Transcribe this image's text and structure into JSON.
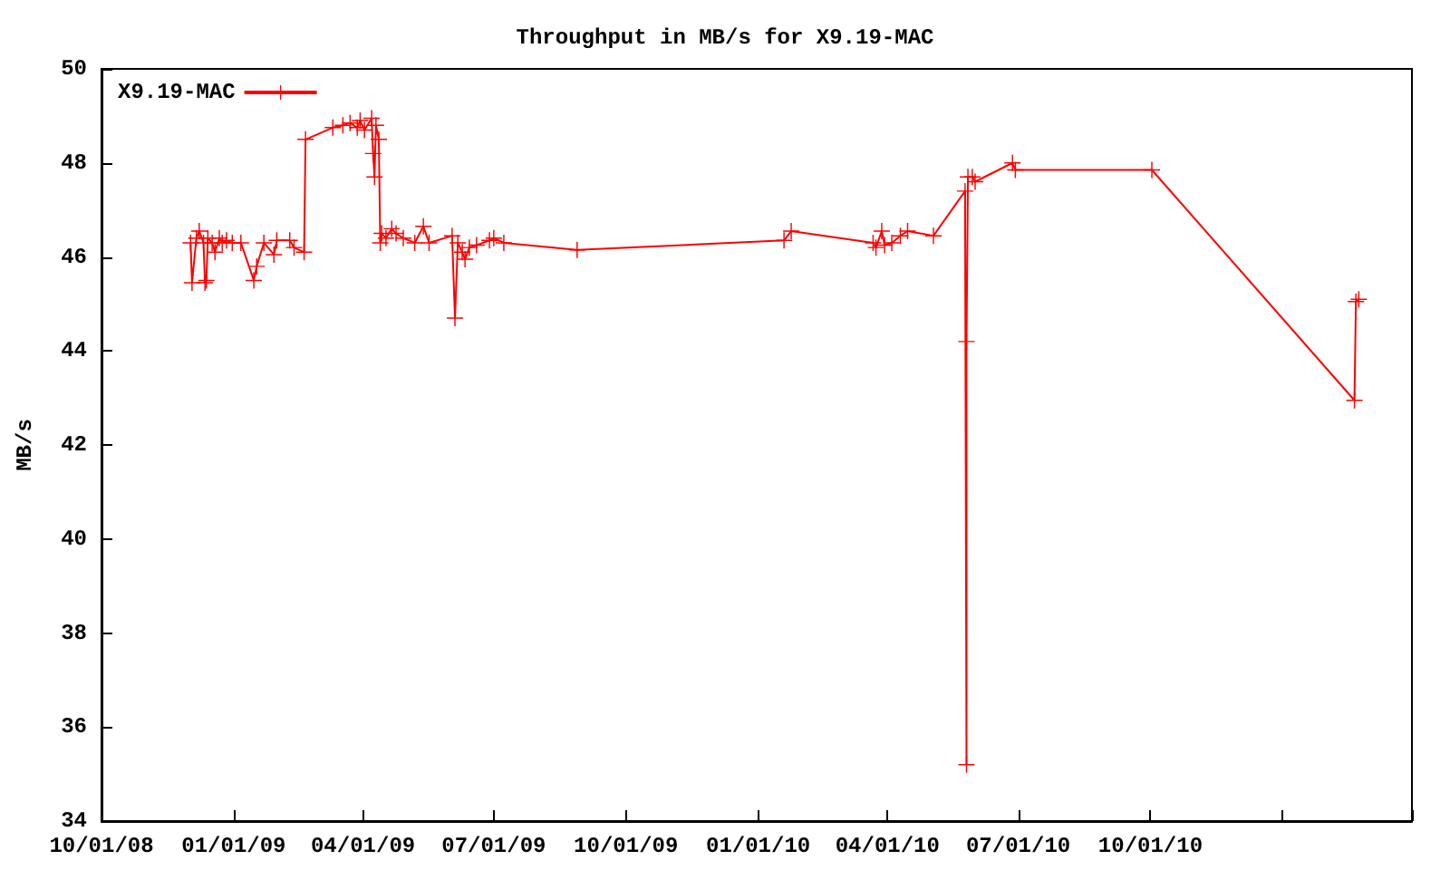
{
  "chart_data": {
    "type": "line",
    "title": "Throughput in MB/s for X9.19-MAC",
    "ylabel": "MB/s",
    "xlim": [
      "2008-10-01",
      "2011-04-01"
    ],
    "xticks": [
      {
        "value": "2008-10-01",
        "label": "10/01/08"
      },
      {
        "value": "2009-01-01",
        "label": "01/01/09"
      },
      {
        "value": "2009-04-01",
        "label": "04/01/09"
      },
      {
        "value": "2009-07-01",
        "label": "07/01/09"
      },
      {
        "value": "2009-10-01",
        "label": "10/01/09"
      },
      {
        "value": "2010-01-01",
        "label": "01/01/10"
      },
      {
        "value": "2010-04-01",
        "label": "04/01/10"
      },
      {
        "value": "2010-07-01",
        "label": "07/01/10"
      },
      {
        "value": "2010-10-01",
        "label": "10/01/10"
      },
      {
        "value": "2011-01-01",
        "label": null
      },
      {
        "value": "2011-04-01",
        "label": null
      }
    ],
    "ylim": [
      34,
      50
    ],
    "yticks": [
      34,
      36,
      38,
      40,
      42,
      44,
      46,
      48,
      50
    ],
    "grid": false,
    "legend": "top left",
    "marker": "cross",
    "line_style": "solid",
    "series": [
      {
        "name": "X9.19-MAC",
        "color": "#ff0000",
        "x": [
          "2008-12-02",
          "2008-12-03",
          "2008-12-06",
          "2008-12-08",
          "2008-12-11",
          "2008-12-12",
          "2008-12-13",
          "2008-12-14",
          "2008-12-17",
          "2008-12-19",
          "2008-12-22",
          "2008-12-24",
          "2008-12-27",
          "2008-12-31",
          "2009-01-06",
          "2009-01-15",
          "2009-01-17",
          "2009-01-22",
          "2009-01-29",
          "2009-01-31",
          "2009-02-09",
          "2009-02-12",
          "2009-02-19",
          "2009-02-20",
          "2009-03-11",
          "2009-03-18",
          "2009-03-23",
          "2009-03-28",
          "2009-03-30",
          "2009-04-02",
          "2009-04-07",
          "2009-04-08",
          "2009-04-09",
          "2009-04-10",
          "2009-04-12",
          "2009-04-13",
          "2009-04-14",
          "2009-04-17",
          "2009-04-21",
          "2009-04-24",
          "2009-04-29",
          "2009-05-07",
          "2009-05-13",
          "2009-05-17",
          "2009-06-02",
          "2009-06-04",
          "2009-06-06",
          "2009-06-09",
          "2009-06-11",
          "2009-06-14",
          "2009-06-19",
          "2009-06-28",
          "2009-07-01",
          "2009-07-08",
          "2009-08-28",
          "2010-01-19",
          "2010-01-24",
          "2010-03-22",
          "2010-03-24",
          "2010-03-28",
          "2010-03-30",
          "2010-04-04",
          "2010-04-10",
          "2010-04-15",
          "2010-05-03",
          "2010-05-25",
          "2010-05-26",
          "2010-05-26",
          "2010-05-27",
          "2010-05-30",
          "2010-06-01",
          "2010-06-27",
          "2010-06-29",
          "2010-10-02",
          "2011-02-20",
          "2011-02-21",
          "2011-02-23"
        ],
        "values": [
          46.3,
          45.45,
          46.4,
          46.55,
          46.3,
          45.45,
          45.5,
          46.4,
          46.3,
          46.1,
          46.4,
          46.3,
          46.35,
          46.3,
          46.3,
          45.5,
          45.8,
          46.3,
          46.05,
          46.35,
          46.35,
          46.2,
          46.1,
          48.5,
          48.75,
          48.8,
          48.85,
          48.75,
          48.9,
          48.7,
          48.95,
          48.2,
          47.7,
          48.8,
          48.5,
          46.3,
          46.5,
          46.4,
          46.6,
          46.5,
          46.4,
          46.3,
          46.65,
          46.3,
          46.45,
          44.7,
          46.3,
          46.1,
          45.95,
          46.2,
          46.25,
          46.35,
          46.4,
          46.3,
          46.15,
          46.35,
          46.55,
          46.3,
          46.2,
          46.55,
          46.25,
          46.3,
          46.45,
          46.55,
          46.45,
          47.4,
          35.2,
          44.2,
          47.7,
          47.7,
          47.6,
          48.0,
          47.85,
          47.85,
          42.95,
          45.05,
          45.1
        ]
      }
    ]
  }
}
